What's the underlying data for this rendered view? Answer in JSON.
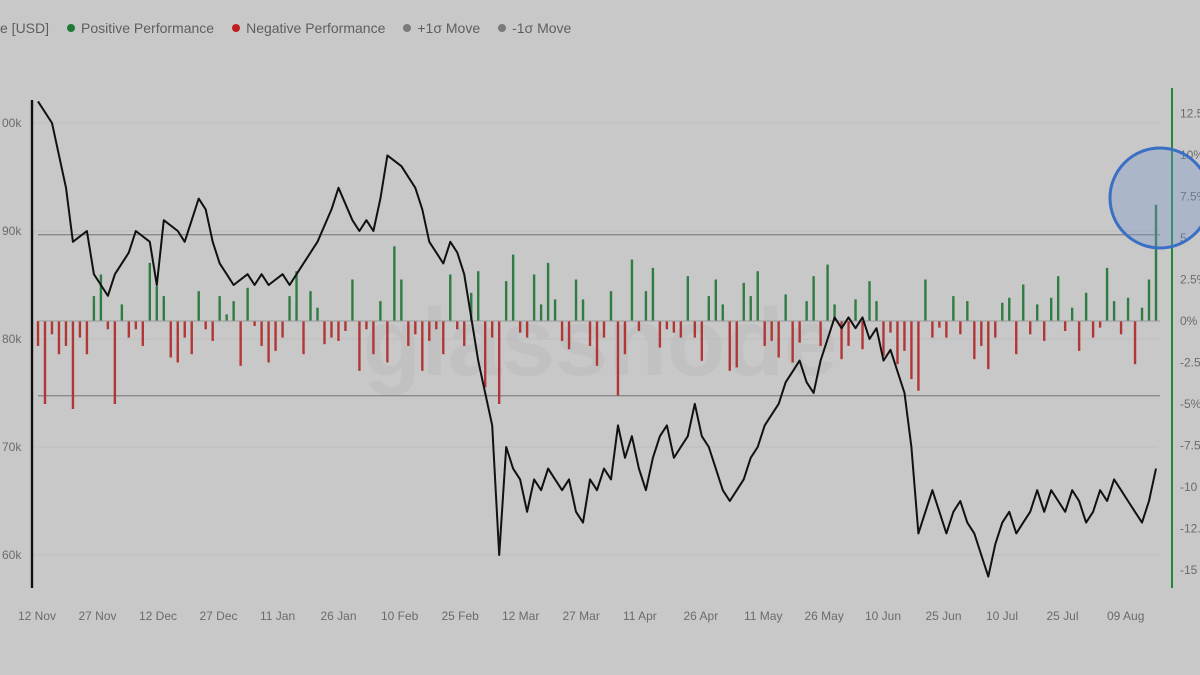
{
  "legend": [
    {
      "label": "e [USD]",
      "color": ""
    },
    {
      "label": "Positive Performance",
      "color": "#1e7a35"
    },
    {
      "label": "Negative Performance",
      "color": "#c01e1e"
    },
    {
      "label": "+1σ Move",
      "color": "#7a7a7a"
    },
    {
      "label": "-1σ Move",
      "color": "#7a7a7a"
    }
  ],
  "watermark": "glassnode",
  "chart_data": {
    "type": "bar+line",
    "x_ticks": [
      "12 Nov",
      "27 Nov",
      "12 Dec",
      "27 Dec",
      "11 Jan",
      "26 Jan",
      "10 Feb",
      "25 Feb",
      "12 Mar",
      "27 Mar",
      "11 Apr",
      "26 Apr",
      "11 May",
      "26 May",
      "10 Jun",
      "25 Jun",
      "10 Jul",
      "25 Jul",
      "09 Aug"
    ],
    "left_axis": {
      "ticks": [
        "00k",
        "90k",
        "80k",
        "70k",
        "60k"
      ],
      "values": [
        100000,
        90000,
        80000,
        70000,
        60000
      ]
    },
    "right_axis": {
      "ticks": [
        "12.5",
        "10%",
        "7.5%",
        "5",
        "2.5%",
        "0%",
        "-2.5",
        "-5%",
        "-7.5",
        "-10",
        "-12.5",
        "-15"
      ],
      "values": [
        12.5,
        10,
        7.5,
        5,
        2.5,
        0,
        -2.5,
        -5,
        -7.5,
        -10,
        -12.5,
        -15
      ]
    },
    "sigma_lines": {
      "plus": 5.2,
      "minus": -4.5
    },
    "price_series": [
      [
        0,
        102
      ],
      [
        2,
        100
      ],
      [
        4,
        94
      ],
      [
        5,
        89
      ],
      [
        7,
        90
      ],
      [
        8,
        86
      ],
      [
        9,
        85
      ],
      [
        10,
        84
      ],
      [
        11,
        86
      ],
      [
        13,
        88
      ],
      [
        14,
        90
      ],
      [
        16,
        89
      ],
      [
        17,
        85
      ],
      [
        18,
        91
      ],
      [
        20,
        90
      ],
      [
        21,
        89
      ],
      [
        22,
        91
      ],
      [
        23,
        93
      ],
      [
        24,
        92
      ],
      [
        25,
        89
      ],
      [
        26,
        87
      ],
      [
        27,
        86
      ],
      [
        28,
        85
      ],
      [
        30,
        86
      ],
      [
        31,
        85
      ],
      [
        32,
        86
      ],
      [
        33,
        85
      ],
      [
        35,
        86
      ],
      [
        36,
        85
      ],
      [
        38,
        87
      ],
      [
        40,
        89
      ],
      [
        42,
        92
      ],
      [
        43,
        94
      ],
      [
        45,
        91
      ],
      [
        46,
        90
      ],
      [
        47,
        91
      ],
      [
        48,
        90
      ],
      [
        49,
        93
      ],
      [
        50,
        97
      ],
      [
        52,
        96
      ],
      [
        54,
        94
      ],
      [
        55,
        92
      ],
      [
        56,
        89
      ],
      [
        57,
        88
      ],
      [
        58,
        87
      ],
      [
        59,
        89
      ],
      [
        60,
        88
      ],
      [
        61,
        86
      ],
      [
        62,
        82
      ],
      [
        63,
        78
      ],
      [
        64,
        75
      ],
      [
        65,
        72
      ],
      [
        66,
        60
      ],
      [
        67,
        70
      ],
      [
        68,
        68
      ],
      [
        69,
        67
      ],
      [
        70,
        64
      ],
      [
        71,
        67
      ],
      [
        72,
        66
      ],
      [
        73,
        68
      ],
      [
        74,
        67
      ],
      [
        75,
        66
      ],
      [
        76,
        67
      ],
      [
        77,
        64
      ],
      [
        78,
        63
      ],
      [
        79,
        67
      ],
      [
        80,
        66
      ],
      [
        81,
        68
      ],
      [
        82,
        67
      ],
      [
        83,
        72
      ],
      [
        84,
        69
      ],
      [
        85,
        71
      ],
      [
        86,
        68
      ],
      [
        87,
        66
      ],
      [
        88,
        69
      ],
      [
        89,
        71
      ],
      [
        90,
        72
      ],
      [
        91,
        69
      ],
      [
        92,
        70
      ],
      [
        93,
        71
      ],
      [
        94,
        74
      ],
      [
        95,
        71
      ],
      [
        96,
        70
      ],
      [
        97,
        68
      ],
      [
        98,
        66
      ],
      [
        99,
        65
      ],
      [
        100,
        66
      ],
      [
        101,
        67
      ],
      [
        102,
        69
      ],
      [
        103,
        70
      ],
      [
        104,
        72
      ],
      [
        105,
        73
      ],
      [
        106,
        74
      ],
      [
        107,
        76
      ],
      [
        108,
        77
      ],
      [
        109,
        78
      ],
      [
        110,
        76
      ],
      [
        111,
        75
      ],
      [
        112,
        78
      ],
      [
        113,
        80
      ],
      [
        114,
        82
      ],
      [
        115,
        81
      ],
      [
        116,
        82
      ],
      [
        117,
        81
      ],
      [
        118,
        82
      ],
      [
        119,
        80
      ],
      [
        120,
        81
      ],
      [
        121,
        78
      ],
      [
        122,
        79
      ],
      [
        123,
        77
      ],
      [
        124,
        75
      ],
      [
        125,
        70
      ],
      [
        126,
        62
      ],
      [
        127,
        64
      ],
      [
        128,
        66
      ],
      [
        129,
        64
      ],
      [
        130,
        62
      ],
      [
        131,
        64
      ],
      [
        132,
        65
      ],
      [
        133,
        63
      ],
      [
        134,
        62
      ],
      [
        135,
        60
      ],
      [
        136,
        58
      ],
      [
        137,
        61
      ],
      [
        138,
        63
      ],
      [
        139,
        64
      ],
      [
        140,
        62
      ],
      [
        141,
        63
      ],
      [
        142,
        64
      ],
      [
        143,
        66
      ],
      [
        144,
        64
      ],
      [
        145,
        66
      ],
      [
        146,
        65
      ],
      [
        147,
        64
      ],
      [
        148,
        66
      ],
      [
        149,
        65
      ],
      [
        150,
        63
      ],
      [
        151,
        64
      ],
      [
        152,
        66
      ],
      [
        153,
        65
      ],
      [
        154,
        67
      ],
      [
        155,
        66
      ],
      [
        156,
        65
      ],
      [
        157,
        64
      ],
      [
        158,
        63
      ],
      [
        159,
        65
      ],
      [
        160,
        68
      ]
    ],
    "bars": [
      [
        0,
        -1.5
      ],
      [
        1,
        -5
      ],
      [
        2,
        -0.8
      ],
      [
        3,
        -2
      ],
      [
        4,
        -1.5
      ],
      [
        5,
        -5.3
      ],
      [
        6,
        -1
      ],
      [
        7,
        -2
      ],
      [
        8,
        1.5
      ],
      [
        9,
        2.8
      ],
      [
        10,
        -0.5
      ],
      [
        11,
        -5
      ],
      [
        12,
        1
      ],
      [
        13,
        -1
      ],
      [
        14,
        -0.5
      ],
      [
        15,
        -1.5
      ],
      [
        16,
        3.5
      ],
      [
        17,
        2.1
      ],
      [
        18,
        1.5
      ],
      [
        19,
        -2.2
      ],
      [
        20,
        -2.5
      ],
      [
        21,
        -1
      ],
      [
        22,
        -2
      ],
      [
        23,
        1.8
      ],
      [
        24,
        -0.5
      ],
      [
        25,
        -1.2
      ],
      [
        26,
        1.5
      ],
      [
        27,
        0.4
      ],
      [
        28,
        1.2
      ],
      [
        29,
        -2.7
      ],
      [
        30,
        2
      ],
      [
        31,
        -0.3
      ],
      [
        32,
        -1.5
      ],
      [
        33,
        -2.5
      ],
      [
        34,
        -1.8
      ],
      [
        35,
        -1
      ],
      [
        36,
        1.5
      ],
      [
        37,
        3
      ],
      [
        38,
        -2
      ],
      [
        39,
        1.8
      ],
      [
        40,
        0.8
      ],
      [
        41,
        -1.4
      ],
      [
        42,
        -1
      ],
      [
        43,
        -1.2
      ],
      [
        44,
        -0.6
      ],
      [
        45,
        2.5
      ],
      [
        46,
        -3
      ],
      [
        47,
        -0.5
      ],
      [
        48,
        -2
      ],
      [
        49,
        1.2
      ],
      [
        50,
        -2.5
      ],
      [
        51,
        4.5
      ],
      [
        52,
        2.5
      ],
      [
        53,
        -1.5
      ],
      [
        54,
        -0.8
      ],
      [
        55,
        -3
      ],
      [
        56,
        -1.2
      ],
      [
        57,
        -0.5
      ],
      [
        58,
        -2
      ],
      [
        59,
        2.8
      ],
      [
        60,
        -0.5
      ],
      [
        61,
        -1.5
      ],
      [
        62,
        1.7
      ],
      [
        63,
        3
      ],
      [
        64,
        -4
      ],
      [
        65,
        -1
      ],
      [
        66,
        -5
      ],
      [
        67,
        2.4
      ],
      [
        68,
        4
      ],
      [
        69,
        -0.7
      ],
      [
        70,
        -1
      ],
      [
        71,
        2.8
      ],
      [
        72,
        1
      ],
      [
        73,
        3.5
      ],
      [
        74,
        1.3
      ],
      [
        75,
        -1.2
      ],
      [
        76,
        -1.7
      ],
      [
        77,
        2.5
      ],
      [
        78,
        1.3
      ],
      [
        79,
        -1.5
      ],
      [
        80,
        -2.7
      ],
      [
        81,
        -1
      ],
      [
        82,
        1.8
      ],
      [
        83,
        -4.5
      ],
      [
        84,
        -2
      ],
      [
        85,
        3.7
      ],
      [
        86,
        -0.6
      ],
      [
        87,
        1.8
      ],
      [
        88,
        3.2
      ],
      [
        89,
        -1.6
      ],
      [
        90,
        -0.5
      ],
      [
        91,
        -0.7
      ],
      [
        92,
        -1
      ],
      [
        93,
        2.7
      ],
      [
        94,
        -1
      ],
      [
        95,
        -2.4
      ],
      [
        96,
        1.5
      ],
      [
        97,
        2.5
      ],
      [
        98,
        1
      ],
      [
        99,
        -3
      ],
      [
        100,
        -2.8
      ],
      [
        101,
        2.3
      ],
      [
        102,
        1.5
      ],
      [
        103,
        3
      ],
      [
        104,
        -1.5
      ],
      [
        105,
        -1.2
      ],
      [
        106,
        -2.2
      ],
      [
        107,
        1.6
      ],
      [
        108,
        -2.5
      ],
      [
        109,
        -1.3
      ],
      [
        110,
        1.2
      ],
      [
        111,
        2.7
      ],
      [
        112,
        -1.5
      ],
      [
        113,
        3.4
      ],
      [
        114,
        1
      ],
      [
        115,
        -2.3
      ],
      [
        116,
        -1.5
      ],
      [
        117,
        1.3
      ],
      [
        118,
        -1.7
      ],
      [
        119,
        2.4
      ],
      [
        120,
        1.2
      ],
      [
        121,
        -2.1
      ],
      [
        122,
        -0.7
      ],
      [
        123,
        -2.6
      ],
      [
        124,
        -1.8
      ],
      [
        125,
        -3.5
      ],
      [
        126,
        -4.2
      ],
      [
        127,
        2.5
      ],
      [
        128,
        -1
      ],
      [
        129,
        -0.4
      ],
      [
        130,
        -1
      ],
      [
        131,
        1.5
      ],
      [
        132,
        -0.8
      ],
      [
        133,
        1.2
      ],
      [
        134,
        -2.3
      ],
      [
        135,
        -1.5
      ],
      [
        136,
        -2.9
      ],
      [
        137,
        -1
      ],
      [
        138,
        1.1
      ],
      [
        139,
        1.4
      ],
      [
        140,
        -2
      ],
      [
        141,
        2.2
      ],
      [
        142,
        -0.8
      ],
      [
        143,
        1
      ],
      [
        144,
        -1.2
      ],
      [
        145,
        1.4
      ],
      [
        146,
        2.7
      ],
      [
        147,
        -0.6
      ],
      [
        148,
        0.8
      ],
      [
        149,
        -1.8
      ],
      [
        150,
        1.7
      ],
      [
        151,
        -1
      ],
      [
        152,
        -0.4
      ],
      [
        153,
        3.2
      ],
      [
        154,
        1.2
      ],
      [
        155,
        -0.8
      ],
      [
        156,
        1.4
      ],
      [
        157,
        -2.6
      ],
      [
        158,
        0.8
      ],
      [
        159,
        2.5
      ],
      [
        160,
        7
      ]
    ]
  }
}
